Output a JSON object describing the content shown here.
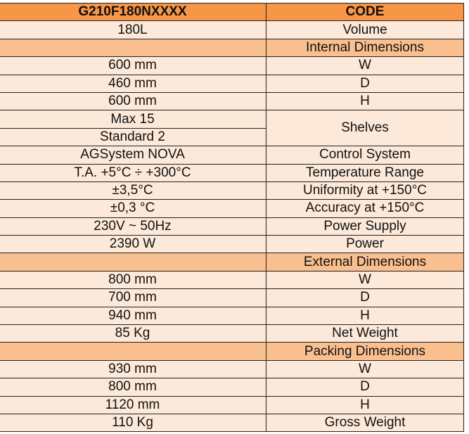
{
  "table": {
    "header": [
      "G210F180NXXXX",
      "CODE"
    ],
    "rows": [
      {
        "value": "180L",
        "code": "Volume"
      },
      {
        "section": "Internal Dimensions"
      },
      {
        "value": "600 mm",
        "code": "W"
      },
      {
        "value": "460 mm",
        "code": "D"
      },
      {
        "value": "600 mm",
        "code": "H"
      },
      {
        "values": [
          "Max 15",
          "Standard 2"
        ],
        "code": "Shelves"
      },
      {
        "value": "AGSystem NOVA",
        "code": "Control System"
      },
      {
        "value": "T.A. +5°C ÷ +300°C",
        "code": "Temperature Range"
      },
      {
        "value": "±3,5°C",
        "code": "Uniformity at +150°C"
      },
      {
        "value": "±0,3 °C",
        "code": "Accuracy at +150°C"
      },
      {
        "value": "230V ~ 50Hz",
        "code": "Power Supply"
      },
      {
        "value": "2390 W",
        "code": "Power"
      },
      {
        "section": "External Dimensions"
      },
      {
        "value": "800 mm",
        "code": "W"
      },
      {
        "value": "700 mm",
        "code": "D"
      },
      {
        "value": "940 mm",
        "code": "H"
      },
      {
        "value": "85 Kg",
        "code": "Net Weight"
      },
      {
        "section": "Packing Dimensions"
      },
      {
        "value": "930 mm",
        "code": "W"
      },
      {
        "value": "800 mm",
        "code": "D"
      },
      {
        "value": "1120 mm",
        "code": "H"
      },
      {
        "value": "110 Kg",
        "code": "Gross Weight"
      }
    ]
  }
}
